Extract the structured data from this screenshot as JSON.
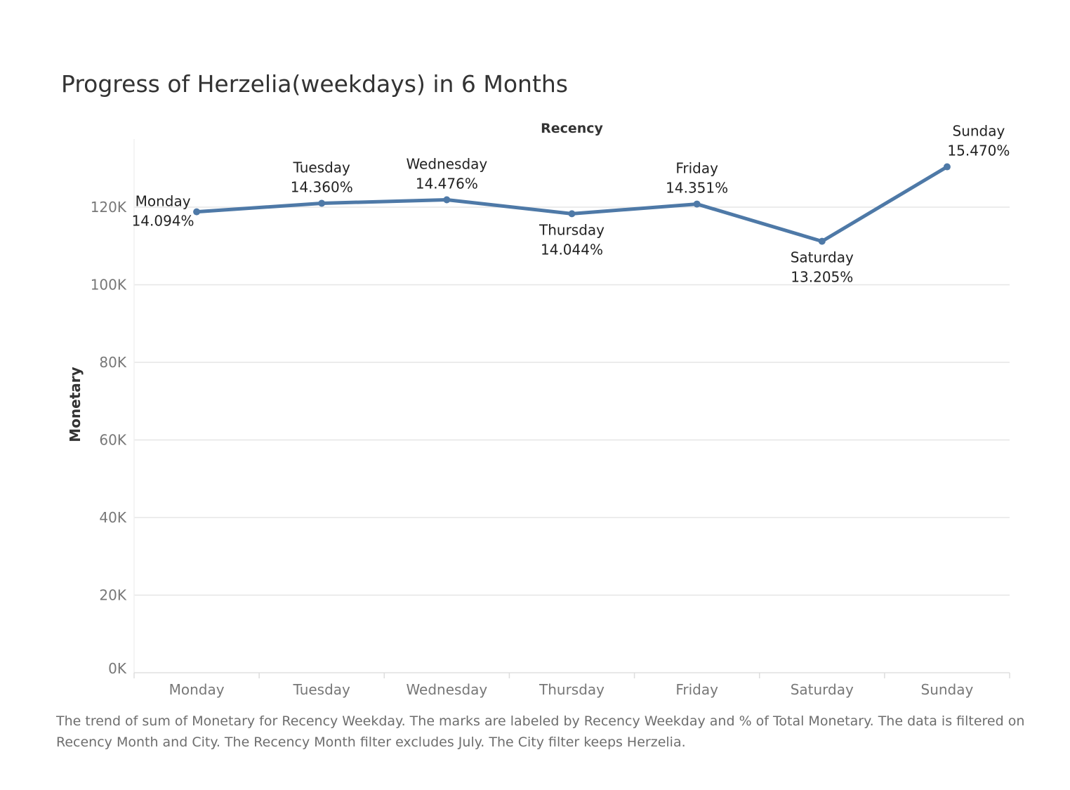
{
  "title": "Progress of Herzelia(weekdays) in 6 Months",
  "caption": "The trend of sum of Monetary for Recency Weekday.  The marks are labeled by Recency Weekday and % of Total Monetary. The data is filtered on Recency Month and City. The Recency Month filter excludes July. The City filter keeps Herzelia.",
  "colors": {
    "line": "#4e79a7",
    "grid": "#e6e6e6",
    "tick_text": "#777777",
    "label_text": "#222222"
  },
  "chart_data": {
    "type": "line",
    "title": "Progress of Herzelia(weekdays) in 6 Months",
    "top_axis_label": "Recency",
    "xlabel": "",
    "ylabel": "Monetary",
    "categories": [
      "Monday",
      "Tuesday",
      "Wednesday",
      "Thursday",
      "Friday",
      "Saturday",
      "Sunday"
    ],
    "values": [
      118800,
      121000,
      121900,
      118300,
      120800,
      111200,
      130400
    ],
    "percent_labels": [
      "14.094%",
      "14.360%",
      "14.476%",
      "14.044%",
      "14.351%",
      "13.205%",
      "15.470%"
    ],
    "label_positions": [
      "left",
      "above",
      "above",
      "below",
      "above",
      "below",
      "above"
    ],
    "ylim": [
      0,
      135000
    ],
    "yticks": [
      0,
      20000,
      40000,
      60000,
      80000,
      100000,
      120000
    ],
    "ytick_labels": [
      "0K",
      "20K",
      "40K",
      "60K",
      "80K",
      "100K",
      "120K"
    ],
    "grid": true,
    "legend": "none"
  }
}
